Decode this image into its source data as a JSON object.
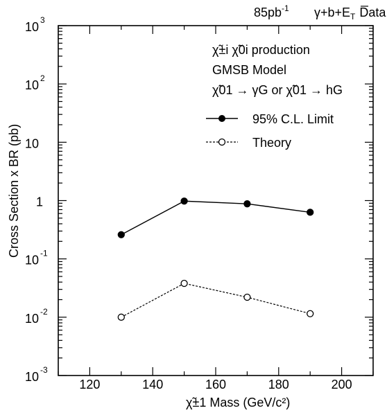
{
  "chart_data": {
    "type": "line",
    "header": {
      "lumi": "85pb",
      "lumi_exp": "-1",
      "channel": "γ+b+E",
      "channel_sub": "T",
      "suffix": "Data"
    },
    "annotations": [
      "χ̃±i χ̃0i production",
      "GMSB Model",
      "χ̃01 → γG  or χ̃01 → hG"
    ],
    "xlabel": "χ̃±1 Mass (GeV/c²)",
    "ylabel": "Cross Section x BR (pb)",
    "xlim": [
      110,
      210
    ],
    "ylim": [
      0.001,
      1000
    ],
    "y_scale": "log",
    "x_ticks": [
      120,
      140,
      160,
      180,
      200
    ],
    "y_tick_labels": [
      {
        "base": "10",
        "exp": "3",
        "value": 1000
      },
      {
        "base": "10",
        "exp": "2",
        "value": 100
      },
      {
        "base": "10",
        "exp": "",
        "value": 10
      },
      {
        "base": "1",
        "exp": "",
        "value": 1
      },
      {
        "base": "10",
        "exp": "-1",
        "value": 0.1
      },
      {
        "base": "10",
        "exp": "-2",
        "value": 0.01
      },
      {
        "base": "10",
        "exp": "-3",
        "value": 0.001
      }
    ],
    "legend_position": "top-right",
    "series": [
      {
        "name": "95% C.L. Limit",
        "marker": "filled-circle",
        "line": "solid",
        "x": [
          130,
          150,
          170,
          190
        ],
        "y": [
          0.26,
          0.98,
          0.88,
          0.63
        ]
      },
      {
        "name": "Theory",
        "marker": "open-circle",
        "line": "dashed",
        "x": [
          130,
          150,
          170,
          190
        ],
        "y": [
          0.01,
          0.038,
          0.022,
          0.0115
        ]
      }
    ]
  }
}
